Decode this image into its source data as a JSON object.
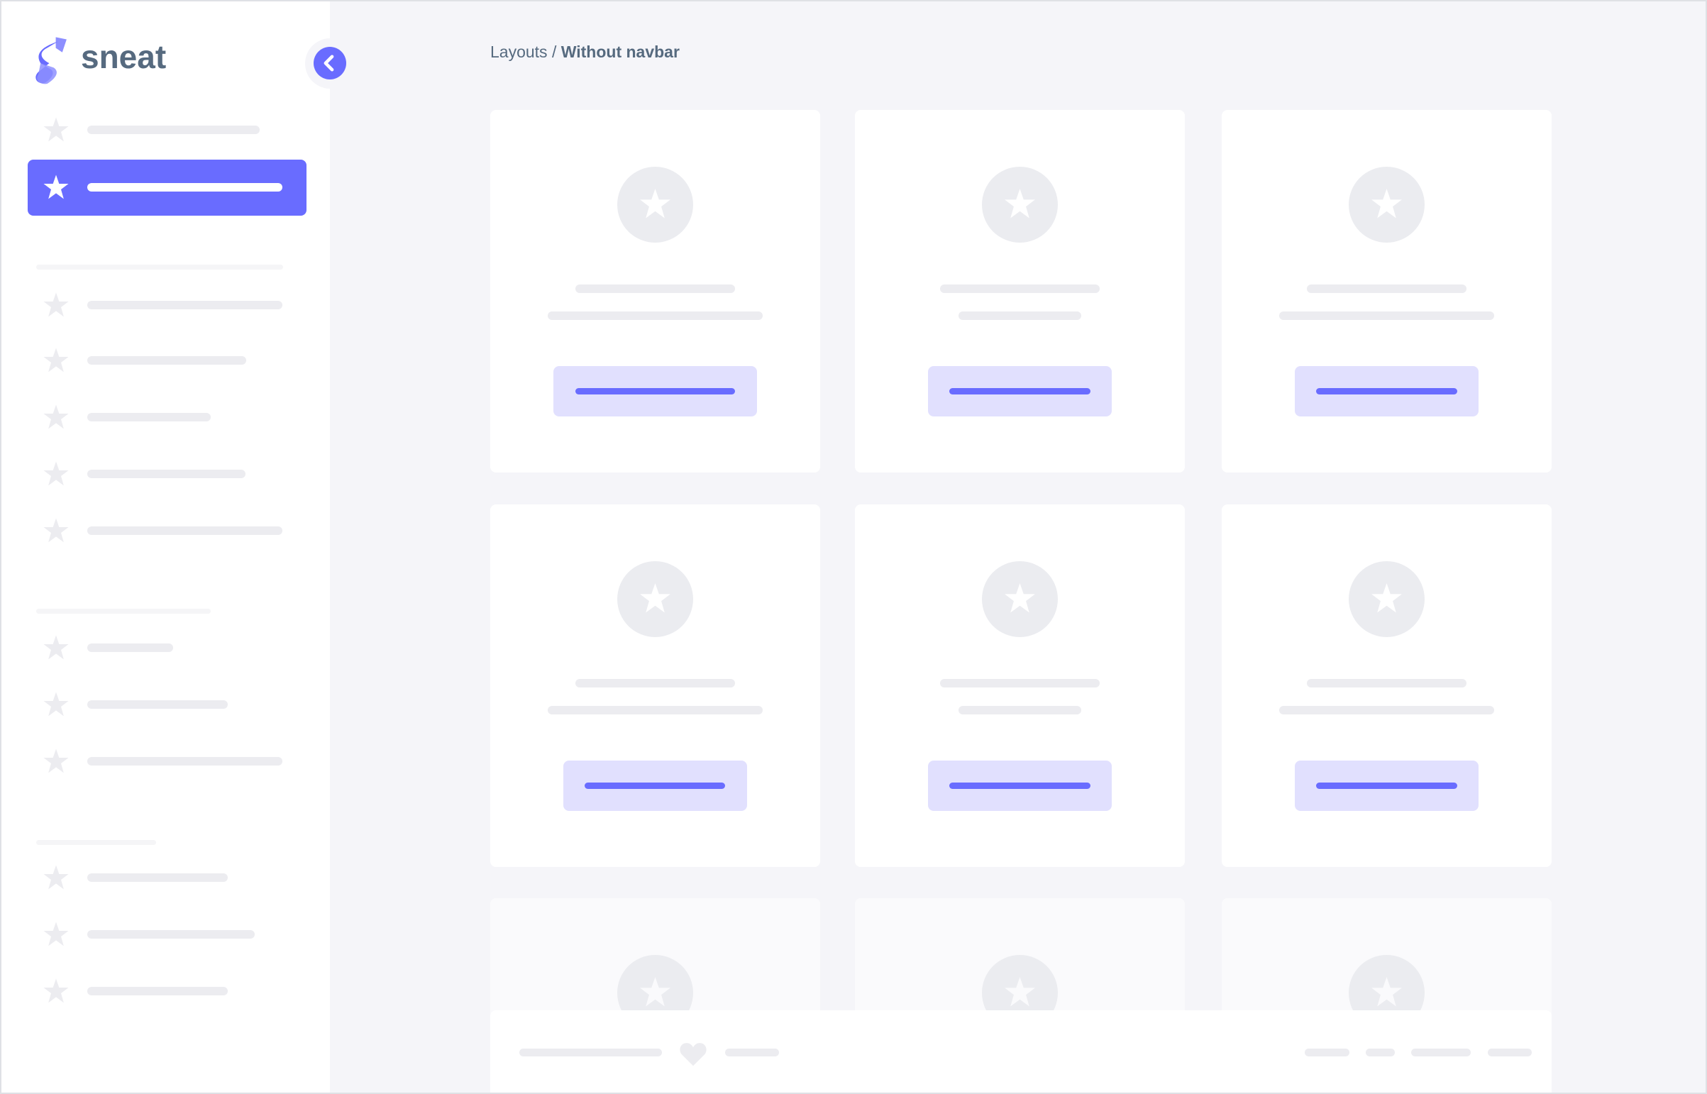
{
  "brand": {
    "name": "sneat",
    "logo_icon": "sneat-logo-icon"
  },
  "sidebar": {
    "toggle_icon": "chevron-left-icon",
    "item_icon": "star-icon",
    "active_index": 1
  },
  "breadcrumb": {
    "parent": "Layouts",
    "separator": " / ",
    "current": "Without navbar"
  },
  "footer": {
    "icon": "heart-icon"
  },
  "colors": {
    "accent": "#696cff",
    "accent_light": "#e1e0fe",
    "background": "#f5f5f9",
    "text": "#566a7f",
    "placeholder": "#ececf0"
  }
}
